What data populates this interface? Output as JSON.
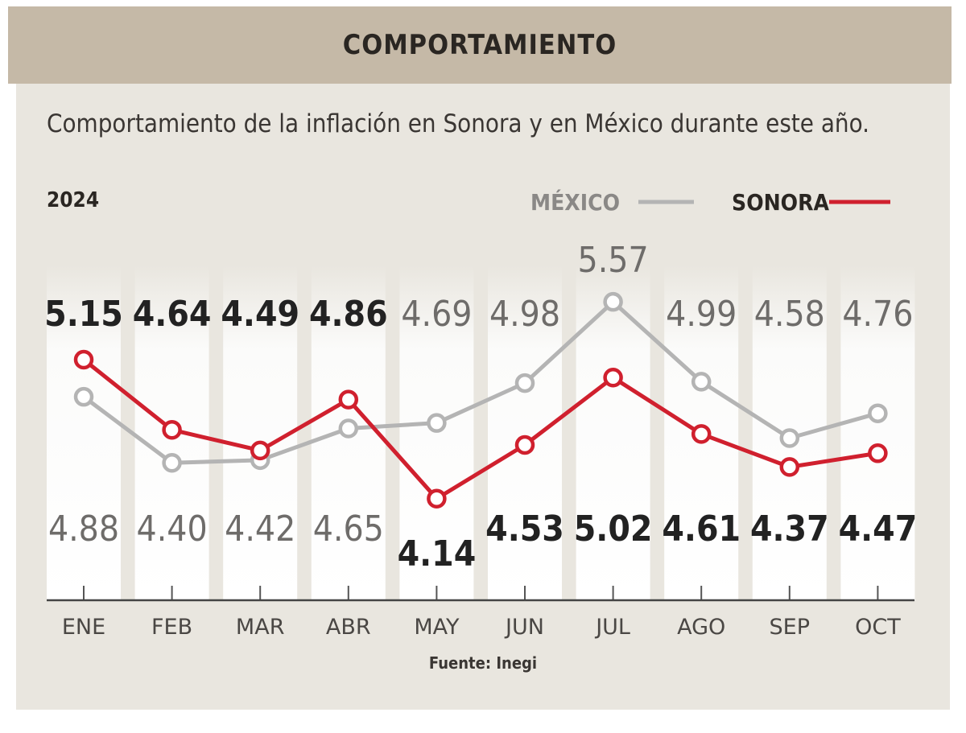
{
  "header": {
    "title": "COMPORTAMIENTO"
  },
  "subtitle": "Comportamiento de la inflación en Sonora y en México durante este año.",
  "year": "2024",
  "source": "Fuente: Inegi",
  "chart_data": {
    "type": "line",
    "title": "COMPORTAMIENTO",
    "categories": [
      "ENE",
      "FEB",
      "MAR",
      "ABR",
      "MAY",
      "JUN",
      "JUL",
      "AGO",
      "SEP",
      "OCT"
    ],
    "series": [
      {
        "name": "MÉXICO",
        "color": "#b4b4b4",
        "values": [
          4.88,
          4.4,
          4.42,
          4.65,
          4.69,
          4.98,
          5.57,
          4.99,
          4.58,
          4.76
        ]
      },
      {
        "name": "SONORA",
        "color": "#d0202e",
        "values": [
          5.15,
          4.64,
          4.49,
          4.86,
          4.14,
          4.53,
          5.02,
          4.61,
          4.37,
          4.47
        ]
      }
    ],
    "legend_placement": "top-right",
    "data_labels": true,
    "grid": false
  }
}
